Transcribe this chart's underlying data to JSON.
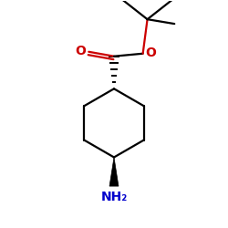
{
  "bg_color": "#ffffff",
  "bond_color": "#000000",
  "oxygen_color": "#cc0000",
  "nitrogen_color": "#0000cc",
  "figsize": [
    2.5,
    2.5
  ],
  "dpi": 100,
  "label_NH2": "NH₂",
  "label_O_double": "O",
  "label_O_single": "O"
}
